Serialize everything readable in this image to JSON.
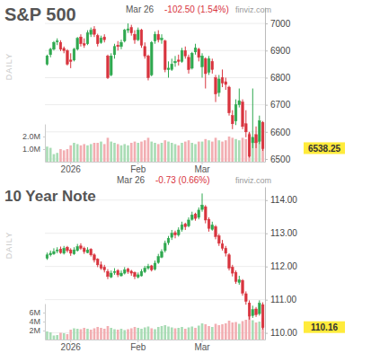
{
  "chart_data": [
    {
      "type": "candlestick",
      "title": "S&P 500",
      "date": "Mar 26",
      "change": "-102.50 (1.54%)",
      "source": "finviz.com",
      "period": "DAILY",
      "categories": [
        null,
        null,
        null,
        null,
        null,
        null,
        null,
        "2026",
        null,
        null,
        null,
        null,
        null,
        null,
        null,
        null,
        null,
        null,
        null,
        null,
        null,
        null,
        null,
        null,
        null,
        null,
        null,
        "Feb",
        null,
        null,
        null,
        null,
        null,
        null,
        null,
        null,
        null,
        null,
        null,
        null,
        null,
        null,
        null,
        null,
        null,
        null,
        "Mar",
        null,
        null,
        null,
        null,
        null,
        null,
        null,
        null,
        null,
        null,
        null,
        null,
        null,
        null,
        null,
        null,
        null,
        null
      ],
      "open": [
        6850,
        6885,
        6905,
        6932,
        6930,
        6908,
        6900,
        6865,
        6865,
        6905,
        6950,
        6925,
        6925,
        6960,
        6978,
        6955,
        6930,
        6950,
        6880,
        6810,
        6885,
        6920,
        6915,
        6935,
        6975,
        6985,
        6960,
        6940,
        6975,
        6915,
        6880,
        6810,
        6935,
        6960,
        6940,
        6935,
        6830,
        6830,
        6855,
        6865,
        6860,
        6900,
        6875,
        6835,
        6895,
        6905,
        6840,
        6870,
        6820,
        6860,
        6800,
        6745,
        6800,
        6785,
        6765,
        6660,
        6640,
        6700,
        6710,
        6630,
        6590,
        6560,
        6590,
        6565,
        6635
      ],
      "high": [
        6885,
        6910,
        6935,
        6945,
        6938,
        6915,
        6905,
        6890,
        6910,
        6950,
        6960,
        6945,
        6975,
        6985,
        6990,
        6962,
        6955,
        6960,
        6885,
        6890,
        6925,
        6935,
        6940,
        6980,
        7000,
        6995,
        6975,
        6985,
        6980,
        6930,
        6885,
        6935,
        6970,
        6975,
        6960,
        6940,
        6860,
        6870,
        6880,
        6885,
        6910,
        6915,
        6885,
        6895,
        6925,
        6910,
        6890,
        6875,
        6880,
        6870,
        6810,
        6810,
        6830,
        6800,
        6770,
        6680,
        6720,
        6760,
        6720,
        6680,
        6600,
        6760,
        6620,
        6660,
        6640
      ],
      "low": [
        6845,
        6875,
        6900,
        6920,
        6898,
        6890,
        6845,
        6835,
        6860,
        6900,
        6915,
        6910,
        6920,
        6950,
        6950,
        6915,
        6925,
        6930,
        6795,
        6805,
        6870,
        6900,
        6905,
        6930,
        6965,
        6955,
        6925,
        6935,
        6910,
        6870,
        6790,
        6805,
        6925,
        6930,
        6925,
        6820,
        6800,
        6825,
        6840,
        6845,
        6855,
        6870,
        6815,
        6830,
        6885,
        6860,
        6800,
        6760,
        6810,
        6815,
        6710,
        6730,
        6765,
        6755,
        6660,
        6610,
        6625,
        6690,
        6610,
        6580,
        6505,
        6540,
        6540,
        6555,
        6530
      ],
      "close": [
        6880,
        6905,
        6930,
        6935,
        6905,
        6900,
        6850,
        6860,
        6905,
        6945,
        6925,
        6920,
        6965,
        6975,
        6960,
        6925,
        6945,
        6940,
        6800,
        6880,
        6915,
        6915,
        6930,
        6975,
        6980,
        6965,
        6940,
        6975,
        6920,
        6880,
        6800,
        6930,
        6960,
        6940,
        6945,
        6830,
        6835,
        6850,
        6860,
        6860,
        6900,
        6880,
        6830,
        6890,
        6910,
        6875,
        6880,
        6815,
        6870,
        6830,
        6740,
        6795,
        6780,
        6775,
        6670,
        6630,
        6700,
        6715,
        6620,
        6600,
        6510,
        6580,
        6560,
        6640.75,
        6538.25
      ],
      "volume": [
        1.2,
        1.1,
        0.6,
        0.7,
        1.0,
        0.9,
        1.0,
        1.3,
        1.5,
        1.4,
        1.3,
        1.4,
        1.3,
        1.4,
        1.5,
        1.5,
        1.6,
        1.4,
        1.9,
        1.6,
        1.5,
        1.4,
        1.3,
        1.4,
        1.3,
        1.5,
        1.6,
        1.5,
        1.6,
        1.7,
        1.9,
        1.6,
        1.5,
        1.4,
        1.5,
        1.7,
        1.6,
        1.5,
        1.4,
        1.3,
        1.5,
        1.6,
        1.7,
        1.5,
        1.4,
        1.6,
        1.6,
        1.8,
        1.7,
        1.6,
        1.9,
        1.7,
        1.6,
        1.7,
        2.0,
        1.9,
        1.8,
        1.7,
        1.9,
        1.8,
        2.3,
        1.9,
        1.7,
        1.8,
        2.1
      ],
      "ylim": [
        6490,
        7060
      ],
      "yticks": [
        6500,
        6600,
        6700,
        6800,
        6900,
        7000
      ],
      "volume_lim": [
        0,
        3
      ],
      "volume_ticks": [
        {
          "value": 1,
          "label": "1.0M"
        },
        {
          "value": 2,
          "label": "2.0M"
        }
      ],
      "last": 6538.25,
      "grid": true
    },
    {
      "type": "candlestick",
      "title": "10 Year Note",
      "date": "Mar 26",
      "change": "-0.73 (0.66%)",
      "source": "finviz.com",
      "period": "DAILY",
      "categories": [
        null,
        null,
        null,
        null,
        null,
        null,
        null,
        "2026",
        null,
        null,
        null,
        null,
        null,
        null,
        null,
        null,
        null,
        null,
        null,
        null,
        null,
        null,
        null,
        null,
        null,
        null,
        null,
        "Feb",
        null,
        null,
        null,
        null,
        null,
        null,
        null,
        null,
        null,
        null,
        null,
        null,
        null,
        null,
        null,
        null,
        null,
        null,
        "Mar",
        null,
        null,
        null,
        null,
        null,
        null,
        null,
        null,
        null,
        null,
        null,
        null,
        null,
        null,
        null,
        null,
        null,
        null
      ],
      "open": [
        112.25,
        112.35,
        112.38,
        112.47,
        112.52,
        112.4,
        112.58,
        112.5,
        112.38,
        112.48,
        112.62,
        112.55,
        112.42,
        112.52,
        112.35,
        112.22,
        112.05,
        111.98,
        111.85,
        111.68,
        111.82,
        111.88,
        111.72,
        111.8,
        111.92,
        111.86,
        111.82,
        111.68,
        111.72,
        111.84,
        111.95,
        112.02,
        111.92,
        112.12,
        112.28,
        112.48,
        112.72,
        112.88,
        113.02,
        112.95,
        113.12,
        113.28,
        113.22,
        113.42,
        113.58,
        113.48,
        113.72,
        113.8,
        113.42,
        113.12,
        113.2,
        112.92,
        112.68,
        112.55,
        112.35,
        111.98,
        111.82,
        111.52,
        111.58,
        111.18,
        110.9,
        110.52,
        110.72,
        110.58,
        110.85
      ],
      "high": [
        112.42,
        112.48,
        112.55,
        112.58,
        112.6,
        112.62,
        112.62,
        112.55,
        112.58,
        112.68,
        112.7,
        112.6,
        112.58,
        112.55,
        112.4,
        112.25,
        112.15,
        112.05,
        111.92,
        111.88,
        111.95,
        111.92,
        111.88,
        111.98,
        111.96,
        111.9,
        111.85,
        111.82,
        111.92,
        112.02,
        112.08,
        112.05,
        112.18,
        112.38,
        112.52,
        112.78,
        112.92,
        113.1,
        113.08,
        113.18,
        113.35,
        113.32,
        113.48,
        113.65,
        113.62,
        113.78,
        114.2,
        113.85,
        113.48,
        113.35,
        113.25,
        112.98,
        112.8,
        112.62,
        112.4,
        112.05,
        111.88,
        111.72,
        111.62,
        111.25,
        110.98,
        110.82,
        110.78,
        110.98,
        110.92
      ],
      "low": [
        112.2,
        112.3,
        112.35,
        112.4,
        112.38,
        112.36,
        112.42,
        112.32,
        112.35,
        112.45,
        112.5,
        112.38,
        112.4,
        112.3,
        112.12,
        111.98,
        111.9,
        111.82,
        111.62,
        111.65,
        111.75,
        111.68,
        111.7,
        111.76,
        111.78,
        111.72,
        111.62,
        111.64,
        111.7,
        111.8,
        111.9,
        111.85,
        111.88,
        112.08,
        112.25,
        112.42,
        112.65,
        112.8,
        112.85,
        112.9,
        113.05,
        113.1,
        113.18,
        113.38,
        113.38,
        113.42,
        113.65,
        113.3,
        113.05,
        113.08,
        112.82,
        112.62,
        112.48,
        112.3,
        111.88,
        111.7,
        111.48,
        111.45,
        111.12,
        110.85,
        110.4,
        110.45,
        110.48,
        110.52,
        110.1
      ],
      "close": [
        112.35,
        112.4,
        112.45,
        112.5,
        112.42,
        112.55,
        112.48,
        112.4,
        112.5,
        112.6,
        112.55,
        112.45,
        112.5,
        112.35,
        112.2,
        112.05,
        111.95,
        111.9,
        111.7,
        111.8,
        111.85,
        111.75,
        111.8,
        111.9,
        111.85,
        111.8,
        111.7,
        111.75,
        111.85,
        111.95,
        112.0,
        111.9,
        112.1,
        112.3,
        112.45,
        112.7,
        112.85,
        113.0,
        112.95,
        113.1,
        113.25,
        113.2,
        113.4,
        113.55,
        113.45,
        113.7,
        113.85,
        113.4,
        113.15,
        113.25,
        112.9,
        112.7,
        112.55,
        112.4,
        111.95,
        111.8,
        111.55,
        111.6,
        111.2,
        110.95,
        110.5,
        110.7,
        110.55,
        110.89,
        110.16
      ],
      "volume": [
        1.8,
        1.6,
        0.9,
        1.0,
        1.5,
        1.4,
        1.2,
        2.2,
        2.5,
        2.4,
        2.3,
        2.6,
        2.4,
        2.2,
        2.5,
        2.8,
        2.6,
        2.4,
        3.0,
        2.6,
        2.3,
        2.2,
        2.4,
        2.1,
        2.3,
        2.5,
        2.8,
        2.6,
        2.4,
        2.7,
        2.9,
        2.5,
        2.3,
        2.8,
        3.0,
        3.2,
        2.9,
        2.7,
        2.5,
        2.6,
        2.8,
        2.4,
        2.7,
        2.9,
        2.6,
        3.1,
        3.6,
        3.4,
        3.0,
        2.8,
        3.5,
        3.2,
        3.4,
        3.6,
        4.2,
        3.8,
        3.9,
        3.5,
        4.1,
        4.4,
        5.0,
        4.3,
        3.8,
        4.0,
        4.8
      ],
      "ylim": [
        109.8,
        114.4
      ],
      "yticks": [
        {
          "value": 110,
          "label": "110.00"
        },
        {
          "value": 111,
          "label": "111.00"
        },
        {
          "value": 112,
          "label": "112.00"
        },
        {
          "value": 113,
          "label": "113.00"
        },
        {
          "value": 114,
          "label": "114.00"
        }
      ],
      "volume_lim": [
        0,
        8
      ],
      "volume_ticks": [
        {
          "value": 2,
          "label": "2M"
        },
        {
          "value": 4,
          "label": "4M"
        },
        {
          "value": 6,
          "label": "6M"
        }
      ],
      "last": 110.16,
      "grid": true
    }
  ]
}
